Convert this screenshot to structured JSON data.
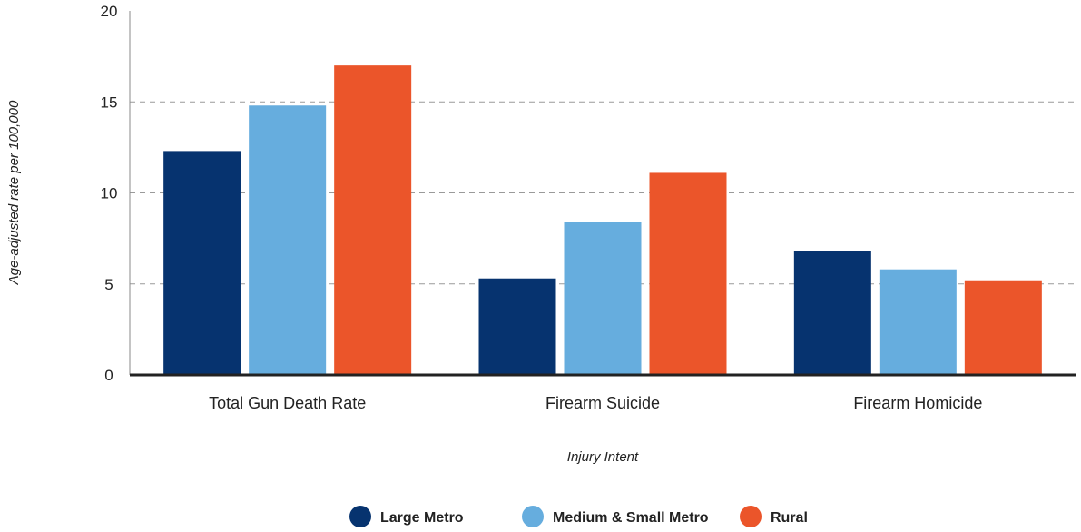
{
  "chart_data": {
    "type": "bar",
    "title": "",
    "xlabel": "Injury Intent",
    "ylabel": "Age-adjusted rate per 100,000",
    "categories": [
      "Total Gun Death Rate",
      "Firearm Suicide",
      "Firearm Homicide"
    ],
    "series": [
      {
        "name": "Large Metro",
        "color": "#06336F",
        "values": [
          12.3,
          5.3,
          6.8
        ]
      },
      {
        "name": "Medium & Small Metro",
        "color": "#66ADDE",
        "values": [
          14.8,
          8.4,
          5.8
        ]
      },
      {
        "name": "Rural",
        "color": "#EB552A",
        "values": [
          17.0,
          11.1,
          5.2
        ]
      }
    ],
    "ylim": [
      0,
      20
    ],
    "yticks": [
      0,
      5,
      10,
      15,
      20
    ],
    "grid": "horizontal dashed",
    "legend": "bottom"
  }
}
